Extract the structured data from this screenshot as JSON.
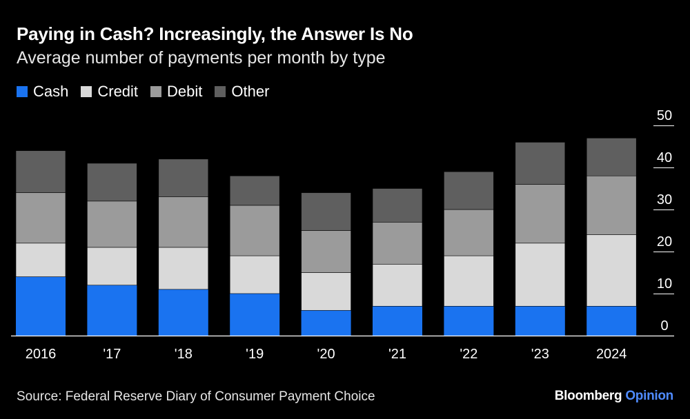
{
  "title": "Paying in Cash? Increasingly, the Answer Is No",
  "subtitle": "Average number of payments per month by type",
  "source": "Source: Federal Reserve Diary of Consumer Payment Choice",
  "brand": {
    "name": "Bloomberg",
    "suffix": "Opinion"
  },
  "colors": {
    "Cash": "#1a73f0",
    "Credit": "#d9d9d9",
    "Debit": "#9b9b9b",
    "Other": "#5f5f5f",
    "brand_accent": "#4f8bff"
  },
  "chart_data": {
    "type": "bar",
    "stacked": true,
    "categories": [
      "2016",
      "'17",
      "'18",
      "'19",
      "'20",
      "'21",
      "'22",
      "'23",
      "2024"
    ],
    "series": [
      {
        "name": "Cash",
        "values": [
          14,
          12,
          11,
          10,
          6,
          7,
          7,
          7,
          7
        ]
      },
      {
        "name": "Credit",
        "values": [
          8,
          9,
          10,
          9,
          9,
          10,
          12,
          15,
          17
        ]
      },
      {
        "name": "Debit",
        "values": [
          12,
          11,
          12,
          12,
          10,
          10,
          11,
          14,
          14
        ]
      },
      {
        "name": "Other",
        "values": [
          10,
          9,
          9,
          7,
          9,
          8,
          9,
          10,
          9
        ]
      }
    ],
    "ylim": [
      0,
      50
    ],
    "yticks": [
      0,
      10,
      20,
      30,
      40,
      50
    ],
    "y_axis_position": "right",
    "legend_position": "top-left",
    "grid": false
  }
}
